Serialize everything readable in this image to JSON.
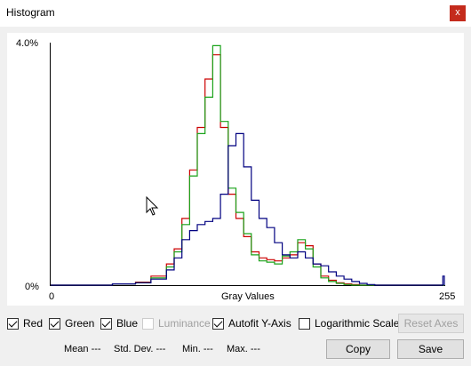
{
  "window": {
    "title": "Histogram",
    "close_label": "x"
  },
  "axes": {
    "y_max_label": "4.0%",
    "y_min_label": "0%",
    "x_min_label": "0",
    "x_max_label": "255",
    "x_title": "Gray Values"
  },
  "chart_data": {
    "type": "line",
    "xlim": [
      0,
      255
    ],
    "ylim": [
      0,
      4.0
    ],
    "series": [
      {
        "name": "Red",
        "color": "#cc0000",
        "x": [
          0,
          40,
          55,
          65,
          75,
          80,
          85,
          90,
          95,
          100,
          105,
          110,
          115,
          120,
          125,
          130,
          135,
          140,
          145,
          150,
          155,
          160,
          165,
          170,
          175,
          180,
          185,
          190,
          195,
          200,
          210,
          220,
          255
        ],
        "y": [
          0,
          0.02,
          0.05,
          0.15,
          0.35,
          0.6,
          1.1,
          1.9,
          2.6,
          3.4,
          3.8,
          2.6,
          1.5,
          1.1,
          0.8,
          0.55,
          0.45,
          0.42,
          0.4,
          0.45,
          0.5,
          0.7,
          0.65,
          0.35,
          0.15,
          0.08,
          0.04,
          0.02,
          0.01,
          0,
          0,
          0,
          0
        ]
      },
      {
        "name": "Green",
        "color": "#1aa31a",
        "x": [
          0,
          40,
          55,
          65,
          75,
          80,
          85,
          90,
          95,
          100,
          105,
          110,
          115,
          120,
          125,
          130,
          135,
          140,
          145,
          150,
          155,
          160,
          165,
          170,
          175,
          180,
          185,
          190,
          195,
          200,
          210,
          220,
          255
        ],
        "y": [
          0,
          0.02,
          0.04,
          0.12,
          0.3,
          0.55,
          1.0,
          1.8,
          2.5,
          3.1,
          3.95,
          2.7,
          1.6,
          1.2,
          0.85,
          0.5,
          0.4,
          0.38,
          0.35,
          0.48,
          0.55,
          0.75,
          0.6,
          0.3,
          0.12,
          0.06,
          0.03,
          0.01,
          0,
          0,
          0,
          0,
          0
        ]
      },
      {
        "name": "Blue",
        "color": "#000080",
        "x": [
          0,
          40,
          55,
          65,
          75,
          80,
          85,
          90,
          95,
          100,
          105,
          110,
          115,
          120,
          125,
          130,
          135,
          140,
          145,
          150,
          155,
          160,
          165,
          170,
          175,
          180,
          185,
          190,
          195,
          200,
          205,
          210,
          220,
          250,
          254,
          255
        ],
        "y": [
          0,
          0.02,
          0.04,
          0.1,
          0.25,
          0.45,
          0.75,
          0.9,
          1.0,
          1.05,
          1.1,
          1.5,
          2.3,
          2.5,
          1.95,
          1.4,
          1.1,
          0.95,
          0.7,
          0.5,
          0.45,
          0.55,
          0.45,
          0.35,
          0.32,
          0.22,
          0.15,
          0.1,
          0.06,
          0.03,
          0.01,
          0,
          0,
          0,
          0.15,
          0
        ]
      }
    ]
  },
  "controls": {
    "red": "Red",
    "green": "Green",
    "blue": "Blue",
    "luminance": "Luminance",
    "autofit": "Autofit Y-Axis",
    "log": "Logarithmic Scale",
    "reset_axes": "Reset Axes",
    "copy": "Copy",
    "save": "Save"
  },
  "stats": {
    "mean": "Mean ---",
    "std": "Std. Dev. ---",
    "min": "Min. ---",
    "max": "Max. ---"
  }
}
